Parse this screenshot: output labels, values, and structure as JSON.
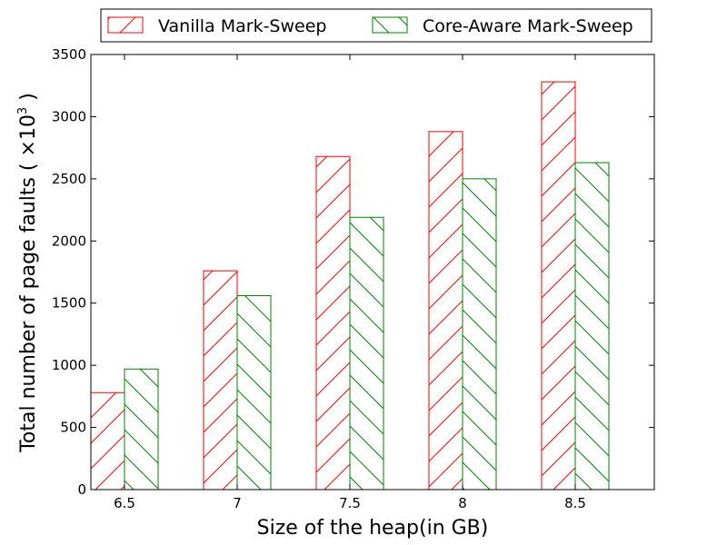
{
  "chart_data": {
    "type": "bar",
    "categories": [
      "6.5",
      "7",
      "7.5",
      "8",
      "8.5"
    ],
    "series": [
      {
        "name": "Vanilla Mark-Sweep",
        "values": [
          780,
          1760,
          2680,
          2880,
          3280
        ],
        "color": "#ff0000",
        "hatch": "/"
      },
      {
        "name": "Core-Aware Mark-Sweep",
        "values": [
          970,
          1560,
          2190,
          2500,
          2630
        ],
        "color": "#008000",
        "hatch": "\\"
      }
    ],
    "xlabel": "Size of the heap(in GB)",
    "ylabel_main": "Total number of page faults ( ×10",
    "ylabel_exp": "3",
    "ylabel_close": " )",
    "ylim": [
      0,
      3500
    ],
    "yticks": [
      "0",
      "500",
      "1000",
      "1500",
      "2000",
      "2500",
      "3000",
      "3500"
    ],
    "grid": false,
    "legend_position": "top"
  }
}
